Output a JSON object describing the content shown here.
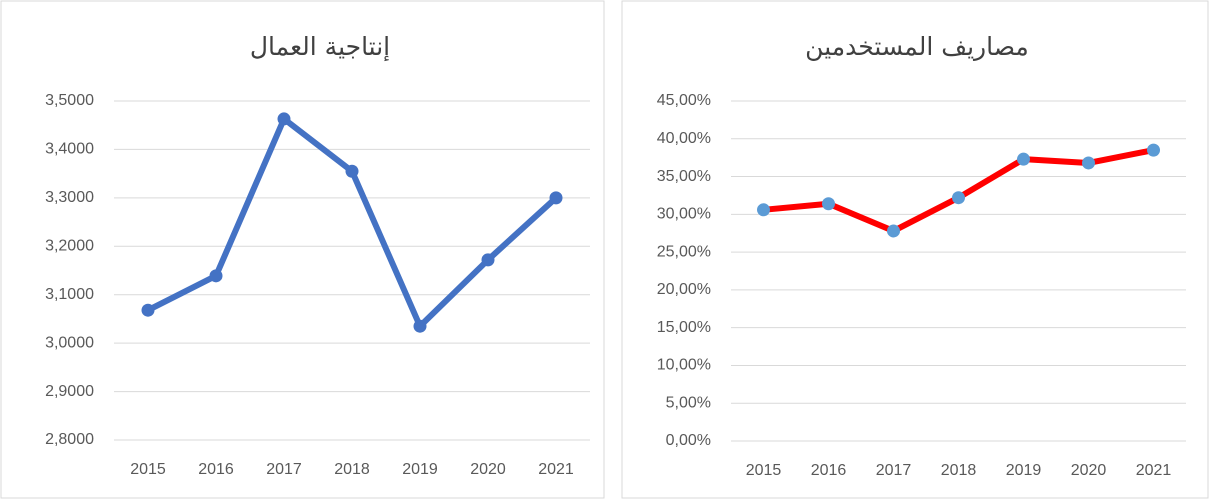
{
  "chart_data": [
    {
      "type": "line",
      "title": "إنتاجية العمال",
      "categories": [
        "2015",
        "2016",
        "2017",
        "2018",
        "2019",
        "2020",
        "2021"
      ],
      "series": [
        {
          "name": "إنتاجية العمال",
          "color": "#4472c4",
          "marker_color": "#4472c4",
          "values": [
            3.068,
            3.139,
            3.463,
            3.355,
            3.035,
            3.172,
            3.3
          ]
        }
      ],
      "ylim": [
        2.8,
        3.5
      ],
      "yticks": [
        {
          "value": 2.8,
          "label": "2,8000"
        },
        {
          "value": 2.9,
          "label": "2,9000"
        },
        {
          "value": 3.0,
          "label": "3,0000"
        },
        {
          "value": 3.1,
          "label": "3,1000"
        },
        {
          "value": 3.2,
          "label": "3,2000"
        },
        {
          "value": 3.3,
          "label": "3,3000"
        },
        {
          "value": 3.4,
          "label": "3,4000"
        },
        {
          "value": 3.5,
          "label": "3,5000"
        }
      ],
      "grid": true
    },
    {
      "type": "line",
      "title": "مصاريف المستخدمين",
      "categories": [
        "2015",
        "2016",
        "2017",
        "2018",
        "2019",
        "2020",
        "2021"
      ],
      "series": [
        {
          "name": "مصاريف المستخدمين",
          "color": "#ff0000",
          "marker_color": "#5b9bd5",
          "values": [
            30.6,
            31.4,
            27.8,
            32.2,
            37.3,
            36.8,
            38.5
          ]
        }
      ],
      "ylim": [
        0,
        45
      ],
      "yticks": [
        {
          "value": 0,
          "label": "0,00%"
        },
        {
          "value": 5,
          "label": "5,00%"
        },
        {
          "value": 10,
          "label": "10,00%"
        },
        {
          "value": 15,
          "label": "15,00%"
        },
        {
          "value": 20,
          "label": "20,00%"
        },
        {
          "value": 25,
          "label": "25,00%"
        },
        {
          "value": 30,
          "label": "30,00%"
        },
        {
          "value": 35,
          "label": "35,00%"
        },
        {
          "value": 40,
          "label": "40,00%"
        },
        {
          "value": 45,
          "label": "45,00%"
        }
      ],
      "grid": true
    }
  ]
}
